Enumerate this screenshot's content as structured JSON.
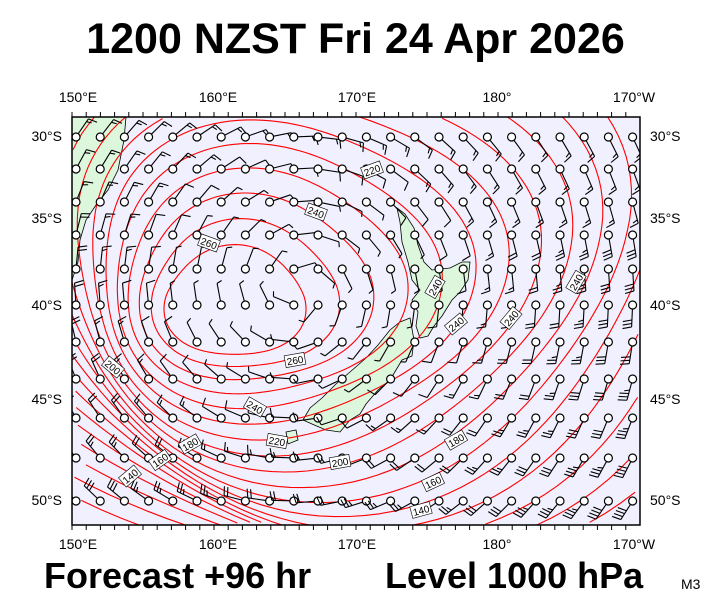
{
  "title": "1200 NZST Fri 24 Apr 2026",
  "footer": {
    "forecast": "Forecast +96 hr",
    "level": "Level 1000 hPa",
    "code": "M3"
  },
  "map": {
    "lon_labels": [
      "150°E",
      "160°E",
      "170°E",
      "180°",
      "170°W"
    ],
    "lat_labels": [
      "30°S",
      "35°S",
      "40°S",
      "45°S",
      "50°S"
    ],
    "contour_labels": [
      "220",
      "240",
      "260",
      "240",
      "240",
      "240",
      "240",
      "200",
      "260",
      "240",
      "220",
      "180",
      "160",
      "140",
      "200",
      "180",
      "160",
      "140"
    ],
    "colors": {
      "ocean": "#f0f0ff",
      "land": "#ddf7dd",
      "contour": "#ff0000",
      "barb": "#000000"
    }
  }
}
